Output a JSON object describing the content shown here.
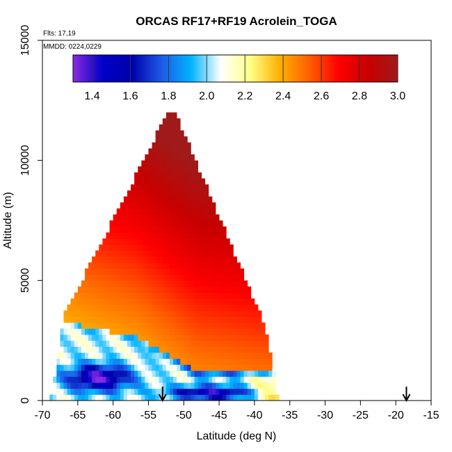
{
  "chart_data": {
    "type": "heatmap",
    "title": "ORCAS RF17+RF19 Acrolein_TOGA",
    "flights_label": "Flts: 17,19",
    "date_label": "MMDD: 0224,0229",
    "xlabel": "Latitude (deg N)",
    "ylabel": "Altitude (m)",
    "xlim": [
      -70,
      -15
    ],
    "ylim": [
      0,
      15000
    ],
    "x_ticks": [
      "-70",
      "-65",
      "-60",
      "-55",
      "-50",
      "-45",
      "-40",
      "-35",
      "-30",
      "-25",
      "-20",
      "-15"
    ],
    "y_ticks": [
      "0",
      "5000",
      "10000",
      "15000"
    ],
    "colorbar": {
      "range": [
        1.3,
        3.0
      ],
      "tick_labels": [
        "1.4",
        "1.6",
        "1.8",
        "2.0",
        "2.2",
        "2.4",
        "2.6",
        "2.8",
        "3.0"
      ],
      "tick_values": [
        1.4,
        1.6,
        1.8,
        2.0,
        2.2,
        2.4,
        2.6,
        2.8,
        3.0
      ],
      "color_stops": [
        "#8a2be2",
        "#0000c8",
        "#0000aa",
        "#1e5ae6",
        "#00b4ff",
        "#ffffff",
        "#ffff88",
        "#ffb000",
        "#ff6000",
        "#ff0000",
        "#c80000",
        "#a01a1a"
      ]
    },
    "arrows_latitude": [
      -53,
      -18.5
    ],
    "grid": false,
    "legend": "colorbar-top"
  }
}
